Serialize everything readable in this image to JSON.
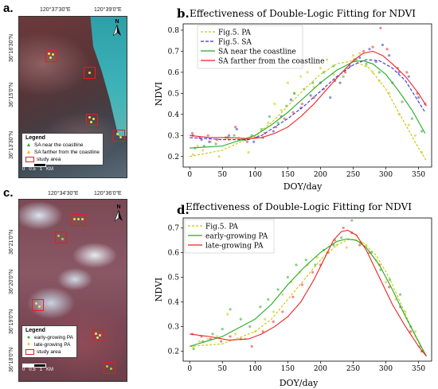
{
  "panels": {
    "a": {
      "letter": "a.",
      "coords_top": [
        "120°37'30\"E",
        "120°39'0\"E"
      ],
      "coords_left": [
        "36°16'30\"N",
        "36°15'0\"N",
        "36°13'30\"N"
      ],
      "north": "N",
      "legend": {
        "title": "Legend",
        "items": [
          "SA near the coastline",
          "SA farther from the coastline",
          "study area"
        ]
      },
      "scale_labels": [
        "0",
        "0.5",
        "1",
        "KM"
      ]
    },
    "c": {
      "letter": "c.",
      "coords_top": [
        "120°34'30\"E",
        "120°36'0\"E"
      ],
      "coords_left": [
        "36°21'0\"N",
        "36°20'0\"N",
        "36°19'0\"N",
        "36°18'0\"N"
      ],
      "north": "N",
      "legend": {
        "title": "Legend",
        "items": [
          "early-growing PA",
          "late-growing PA",
          "study area"
        ]
      },
      "scale_labels": [
        "0",
        "0.5",
        "1",
        "KM"
      ]
    }
  },
  "chart_data": [
    {
      "letter": "b.",
      "type": "line",
      "title": "Effectiveness of Double-Logic Fitting for NDVI",
      "xlabel": "DOY/day",
      "ylabel": "NDVI",
      "xlim": [
        -10,
        370
      ],
      "ylim": [
        0.15,
        0.83
      ],
      "xticks": [
        0,
        50,
        100,
        150,
        200,
        250,
        300,
        350
      ],
      "yticks": [
        0.2,
        0.3,
        0.4,
        0.5,
        0.6,
        0.7,
        0.8
      ],
      "legend_position": "top-left",
      "series": [
        {
          "name": "Fig.5. PA",
          "color": "#c8c800",
          "dash": "3,2",
          "x": [
            0,
            50,
            100,
            125,
            150,
            175,
            200,
            225,
            250,
            275,
            300,
            325,
            350,
            362
          ],
          "y": [
            0.2,
            0.23,
            0.3,
            0.36,
            0.44,
            0.52,
            0.59,
            0.64,
            0.655,
            0.62,
            0.52,
            0.38,
            0.24,
            0.18
          ],
          "points": [
            [
              5,
              0.21
            ],
            [
              12,
              0.25
            ],
            [
              20,
              0.23
            ],
            [
              32,
              0.27
            ],
            [
              45,
              0.2
            ],
            [
              60,
              0.28
            ],
            [
              75,
              0.29
            ],
            [
              90,
              0.22
            ],
            [
              105,
              0.3
            ],
            [
              120,
              0.36
            ],
            [
              130,
              0.45
            ],
            [
              140,
              0.42
            ],
            [
              150,
              0.55
            ],
            [
              160,
              0.5
            ],
            [
              170,
              0.58
            ],
            [
              180,
              0.6
            ],
            [
              190,
              0.53
            ],
            [
              200,
              0.62
            ],
            [
              210,
              0.66
            ],
            [
              220,
              0.59
            ],
            [
              240,
              0.62
            ],
            [
              250,
              0.68
            ],
            [
              260,
              0.69
            ],
            [
              270,
              0.63
            ],
            [
              280,
              0.6
            ],
            [
              290,
              0.56
            ],
            [
              305,
              0.5
            ],
            [
              320,
              0.4
            ],
            [
              335,
              0.35
            ],
            [
              345,
              0.3
            ],
            [
              355,
              0.22
            ]
          ]
        },
        {
          "name": "Fig.5. SA",
          "color": "#3333cc",
          "dash": "4,2",
          "x": [
            0,
            50,
            90,
            110,
            130,
            150,
            175,
            200,
            225,
            250,
            270,
            290,
            310,
            330,
            350,
            360
          ],
          "y": [
            0.29,
            0.28,
            0.28,
            0.3,
            0.34,
            0.38,
            0.44,
            0.51,
            0.58,
            0.635,
            0.66,
            0.655,
            0.62,
            0.56,
            0.46,
            0.41
          ],
          "points": [
            [
              5,
              0.3
            ],
            [
              18,
              0.28
            ],
            [
              30,
              0.27
            ],
            [
              60,
              0.3
            ],
            [
              72,
              0.33
            ],
            [
              85,
              0.28
            ],
            [
              98,
              0.27
            ],
            [
              112,
              0.29
            ],
            [
              128,
              0.32
            ],
            [
              140,
              0.39
            ],
            [
              155,
              0.47
            ],
            [
              170,
              0.43
            ],
            [
              185,
              0.49
            ],
            [
              200,
              0.55
            ],
            [
              215,
              0.48
            ],
            [
              230,
              0.55
            ],
            [
              245,
              0.63
            ],
            [
              260,
              0.67
            ],
            [
              275,
              0.71
            ],
            [
              285,
              0.65
            ],
            [
              295,
              0.73
            ],
            [
              305,
              0.68
            ],
            [
              320,
              0.6
            ],
            [
              335,
              0.58
            ],
            [
              350,
              0.48
            ]
          ]
        },
        {
          "name": "SA near the coastline",
          "color": "#22aa22",
          "dash": "",
          "x": [
            0,
            50,
            100,
            125,
            150,
            175,
            200,
            225,
            250,
            265,
            280,
            300,
            320,
            340,
            360
          ],
          "y": [
            0.24,
            0.25,
            0.3,
            0.35,
            0.41,
            0.48,
            0.55,
            0.61,
            0.65,
            0.655,
            0.64,
            0.59,
            0.51,
            0.42,
            0.31
          ],
          "points": [
            [
              8,
              0.24
            ],
            [
              22,
              0.25
            ],
            [
              40,
              0.26
            ],
            [
              55,
              0.29
            ],
            [
              68,
              0.3
            ],
            [
              80,
              0.28
            ],
            [
              95,
              0.3
            ],
            [
              110,
              0.33
            ],
            [
              122,
              0.39
            ],
            [
              135,
              0.36
            ],
            [
              148,
              0.44
            ],
            [
              160,
              0.5
            ],
            [
              175,
              0.52
            ],
            [
              188,
              0.55
            ],
            [
              205,
              0.6
            ],
            [
              220,
              0.63
            ],
            [
              235,
              0.58
            ],
            [
              255,
              0.66
            ],
            [
              270,
              0.64
            ],
            [
              290,
              0.6
            ],
            [
              310,
              0.55
            ],
            [
              325,
              0.46
            ],
            [
              340,
              0.38
            ],
            [
              355,
              0.32
            ]
          ]
        },
        {
          "name": "SA farther from the coastline",
          "color": "#ee2222",
          "dash": "",
          "x": [
            0,
            30,
            60,
            90,
            110,
            130,
            150,
            170,
            190,
            210,
            230,
            250,
            265,
            280,
            295,
            310,
            330,
            350,
            362
          ],
          "y": [
            0.3,
            0.29,
            0.29,
            0.285,
            0.29,
            0.31,
            0.34,
            0.39,
            0.45,
            0.52,
            0.59,
            0.655,
            0.69,
            0.7,
            0.68,
            0.64,
            0.58,
            0.5,
            0.44
          ],
          "points": [
            [
              4,
              0.31
            ],
            [
              15,
              0.29
            ],
            [
              28,
              0.3
            ],
            [
              42,
              0.28
            ],
            [
              58,
              0.29
            ],
            [
              70,
              0.34
            ],
            [
              88,
              0.27
            ],
            [
              100,
              0.29
            ],
            [
              115,
              0.31
            ],
            [
              132,
              0.34
            ],
            [
              145,
              0.38
            ],
            [
              158,
              0.41
            ],
            [
              172,
              0.45
            ],
            [
              190,
              0.48
            ],
            [
              205,
              0.52
            ],
            [
              222,
              0.56
            ],
            [
              238,
              0.6
            ],
            [
              252,
              0.66
            ],
            [
              266,
              0.7
            ],
            [
              280,
              0.72
            ],
            [
              292,
              0.81
            ],
            [
              302,
              0.71
            ],
            [
              318,
              0.62
            ],
            [
              332,
              0.6
            ],
            [
              348,
              0.5
            ],
            [
              360,
              0.45
            ]
          ]
        }
      ]
    },
    {
      "letter": "d.",
      "type": "line",
      "title": "Effectiveness of Double-Logic Fitting for NDVI",
      "xlabel": "DOY/day",
      "ylabel": "NDVI",
      "xlim": [
        -10,
        370
      ],
      "ylim": [
        0.16,
        0.74
      ],
      "xticks": [
        0,
        50,
        100,
        150,
        200,
        250,
        300,
        350
      ],
      "yticks": [
        0.2,
        0.3,
        0.4,
        0.5,
        0.6,
        0.7
      ],
      "legend_position": "top-left",
      "series": [
        {
          "name": "Fig.5. PA",
          "color": "#c8c800",
          "dash": "3,2",
          "x": [
            0,
            50,
            100,
            125,
            150,
            175,
            200,
            225,
            245,
            265,
            285,
            305,
            325,
            345,
            362
          ],
          "y": [
            0.22,
            0.23,
            0.28,
            0.33,
            0.41,
            0.49,
            0.57,
            0.63,
            0.655,
            0.64,
            0.59,
            0.5,
            0.38,
            0.26,
            0.18
          ],
          "points": [
            [
              5,
              0.22
            ],
            [
              15,
              0.24
            ],
            [
              28,
              0.25
            ],
            [
              42,
              0.26
            ],
            [
              58,
              0.35
            ],
            [
              70,
              0.27
            ],
            [
              85,
              0.25
            ],
            [
              100,
              0.28
            ],
            [
              115,
              0.33
            ],
            [
              128,
              0.36
            ],
            [
              142,
              0.43
            ],
            [
              155,
              0.48
            ],
            [
              168,
              0.52
            ],
            [
              180,
              0.55
            ],
            [
              195,
              0.58
            ],
            [
              210,
              0.6
            ],
            [
              225,
              0.63
            ],
            [
              240,
              0.62
            ],
            [
              255,
              0.67
            ],
            [
              270,
              0.63
            ],
            [
              285,
              0.57
            ],
            [
              300,
              0.48
            ],
            [
              315,
              0.41
            ],
            [
              330,
              0.36
            ],
            [
              345,
              0.28
            ],
            [
              355,
              0.2
            ]
          ]
        },
        {
          "name": "early-growing PA",
          "color": "#22aa22",
          "dash": "",
          "x": [
            0,
            50,
            100,
            125,
            150,
            175,
            200,
            225,
            240,
            255,
            270,
            290,
            310,
            330,
            350,
            362
          ],
          "y": [
            0.22,
            0.26,
            0.33,
            0.39,
            0.47,
            0.54,
            0.6,
            0.645,
            0.655,
            0.65,
            0.62,
            0.55,
            0.45,
            0.34,
            0.24,
            0.18
          ],
          "points": [
            [
              6,
              0.21
            ],
            [
              20,
              0.24
            ],
            [
              35,
              0.27
            ],
            [
              50,
              0.29
            ],
            [
              62,
              0.37
            ],
            [
              78,
              0.33
            ],
            [
              92,
              0.3
            ],
            [
              108,
              0.38
            ],
            [
              120,
              0.41
            ],
            [
              135,
              0.45
            ],
            [
              150,
              0.5
            ],
            [
              163,
              0.55
            ],
            [
              178,
              0.57
            ],
            [
              192,
              0.55
            ],
            [
              205,
              0.61
            ],
            [
              220,
              0.63
            ],
            [
              232,
              0.66
            ],
            [
              248,
              0.73
            ],
            [
              262,
              0.64
            ],
            [
              278,
              0.6
            ],
            [
              292,
              0.53
            ],
            [
              306,
              0.49
            ],
            [
              322,
              0.43
            ],
            [
              338,
              0.3
            ],
            [
              352,
              0.22
            ]
          ]
        },
        {
          "name": "late-growing PA",
          "color": "#ee2222",
          "dash": "",
          "x": [
            0,
            30,
            60,
            90,
            110,
            130,
            150,
            170,
            190,
            205,
            220,
            232,
            242,
            255,
            270,
            290,
            310,
            330,
            350,
            362
          ],
          "y": [
            0.27,
            0.26,
            0.245,
            0.25,
            0.27,
            0.3,
            0.34,
            0.4,
            0.49,
            0.57,
            0.65,
            0.685,
            0.69,
            0.67,
            0.61,
            0.5,
            0.39,
            0.3,
            0.22,
            0.18
          ],
          "points": [
            [
              4,
              0.27
            ],
            [
              18,
              0.26
            ],
            [
              32,
              0.25
            ],
            [
              48,
              0.24
            ],
            [
              62,
              0.26
            ],
            [
              78,
              0.25
            ],
            [
              95,
              0.22
            ],
            [
              112,
              0.28
            ],
            [
              128,
              0.32
            ],
            [
              142,
              0.36
            ],
            [
              158,
              0.42
            ],
            [
              172,
              0.47
            ],
            [
              188,
              0.52
            ],
            [
              200,
              0.55
            ],
            [
              212,
              0.6
            ],
            [
              222,
              0.65
            ],
            [
              235,
              0.7
            ],
            [
              248,
              0.68
            ],
            [
              260,
              0.63
            ],
            [
              275,
              0.6
            ],
            [
              290,
              0.55
            ],
            [
              305,
              0.46
            ],
            [
              322,
              0.38
            ],
            [
              338,
              0.28
            ],
            [
              355,
              0.2
            ]
          ]
        }
      ]
    }
  ]
}
